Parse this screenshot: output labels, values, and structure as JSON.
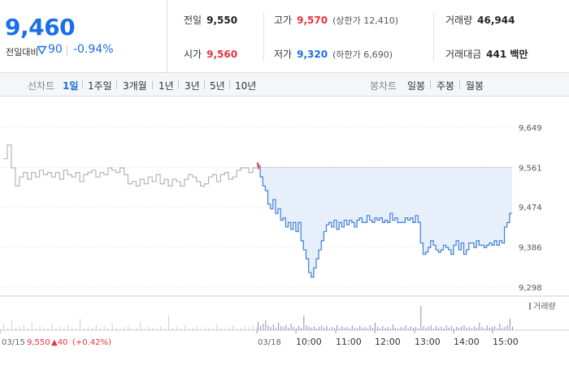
{
  "quote": {
    "current_price": "9,460",
    "change_label": "전일대비",
    "change_amount": "90",
    "change_rate": "-0.94%",
    "prev_close": {
      "label": "전일",
      "value": "9,550"
    },
    "high": {
      "label": "고가",
      "value": "9,570",
      "limit": "(상한가 12,410)"
    },
    "volume": {
      "label": "거래량",
      "value": "46,944"
    },
    "open": {
      "label": "시가",
      "value": "9,560"
    },
    "low": {
      "label": "저가",
      "value": "9,320",
      "limit": "(하한가 6,690)"
    },
    "trade_value": {
      "label": "거래대금",
      "value": "441 백만"
    }
  },
  "period_bar": {
    "line_label": "선차트",
    "line_options": [
      "1일",
      "1주일",
      "3개월",
      "1년",
      "3년",
      "5년",
      "10년"
    ],
    "active_line": "1일",
    "candle_label": "봉차트",
    "candle_options": [
      "일봉",
      "주봉",
      "월봉"
    ]
  },
  "chart_data": {
    "type": "line",
    "y_ticks": [
      "9,649",
      "9,561",
      "9,474",
      "9,386",
      "9,298"
    ],
    "ylim": [
      9298,
      9649
    ],
    "reference_price": 9561,
    "x_ticks_prev": [
      "03/15",
      "03/18"
    ],
    "x_ticks": [
      "10:00",
      "11:00",
      "12:00",
      "13:00",
      "14:00",
      "15:00"
    ],
    "prev_day_summary": {
      "date": "03/15",
      "close": "9,550",
      "change": "▲40",
      "rate": "(+0.42%)"
    },
    "volume_legend": "거래량",
    "prev_day_series": {
      "values": [
        9580,
        9610,
        9560,
        9520,
        9540,
        9550,
        9535,
        9550,
        9540,
        9555,
        9545,
        9550,
        9540,
        9550,
        9535,
        9555,
        9545,
        9540,
        9550,
        9530,
        9545,
        9550,
        9555,
        9540,
        9550,
        9545,
        9560,
        9555,
        9550,
        9560,
        9545,
        9525,
        9530,
        9520,
        9535,
        9525,
        9540,
        9530,
        9545,
        9525,
        9535,
        9520,
        9535,
        9530,
        9520,
        9535,
        9545,
        9540,
        9530,
        9520,
        9525,
        9540,
        9545,
        9530,
        9545,
        9550,
        9535,
        9540,
        9555,
        9560,
        9560,
        9550,
        9560,
        9560
      ]
    },
    "today_series": {
      "values": [
        9565,
        9540,
        9520,
        9510,
        9480,
        9470,
        9490,
        9460,
        9470,
        9445,
        9450,
        9430,
        9440,
        9425,
        9440,
        9420,
        9440,
        9400,
        9380,
        9360,
        9330,
        9320,
        9340,
        9360,
        9380,
        9400,
        9420,
        9435,
        9440,
        9430,
        9445,
        9425,
        9440,
        9430,
        9445,
        9435,
        9445,
        9440,
        9430,
        9445,
        9450,
        9440,
        9440,
        9455,
        9445,
        9440,
        9450,
        9445,
        9450,
        9440,
        9445,
        9440,
        9460,
        9445,
        9450,
        9440,
        9440,
        9440,
        9450,
        9445,
        9450,
        9440,
        9455,
        9440,
        9395,
        9370,
        9375,
        9385,
        9400,
        9390,
        9380,
        9375,
        9380,
        9390,
        9385,
        9380,
        9370,
        9390,
        9400,
        9380,
        9395,
        9370,
        9380,
        9395,
        9395,
        9385,
        9400,
        9390,
        9390,
        9385,
        9390,
        9395,
        9390,
        9400,
        9390,
        9400,
        9395,
        9430,
        9440,
        9460,
        9460
      ]
    },
    "volume": {
      "prev": [
        8,
        2,
        12,
        3,
        4,
        6,
        2,
        10,
        2,
        5,
        3,
        2,
        8,
        3,
        4,
        2,
        6,
        3,
        2,
        14,
        2,
        4,
        3,
        6,
        2,
        5,
        2,
        8,
        3,
        2,
        4,
        6,
        2,
        3,
        10,
        2,
        4,
        3,
        2,
        5,
        2,
        18,
        3,
        4,
        2,
        6,
        2,
        3,
        5,
        2,
        4,
        3,
        2,
        8,
        3,
        2,
        4,
        6,
        2,
        3,
        5,
        4,
        6,
        3
      ],
      "today": [
        10,
        5,
        8,
        12,
        6,
        4,
        7,
        3,
        9,
        5,
        4,
        6,
        3,
        8,
        4,
        2,
        5,
        3,
        18,
        6,
        4,
        3,
        5,
        2,
        4,
        6,
        3,
        5,
        2,
        4,
        3,
        6,
        2,
        5,
        3,
        4,
        2,
        6,
        3,
        2,
        5,
        3,
        4,
        2,
        6,
        3,
        9,
        4,
        2,
        5,
        3,
        4,
        2,
        7,
        3,
        2,
        4,
        3,
        6,
        2,
        5,
        3,
        4,
        2,
        30,
        5,
        3,
        4,
        6,
        2,
        5,
        3,
        4,
        2,
        6,
        3,
        5,
        2,
        4,
        3,
        5,
        6,
        3,
        4,
        2,
        5,
        3,
        9,
        4,
        2,
        6,
        3,
        4,
        5,
        2,
        8,
        3,
        4,
        6,
        14,
        4
      ]
    },
    "colors": {
      "prev_line": "#b5b5b5",
      "today_line": "#4a86d8",
      "fill": "#e6effa",
      "reference_line": "#999999",
      "volume_prev": "#cfcfcf",
      "volume_today": "#9a86c4",
      "red": "#e8323c"
    }
  }
}
